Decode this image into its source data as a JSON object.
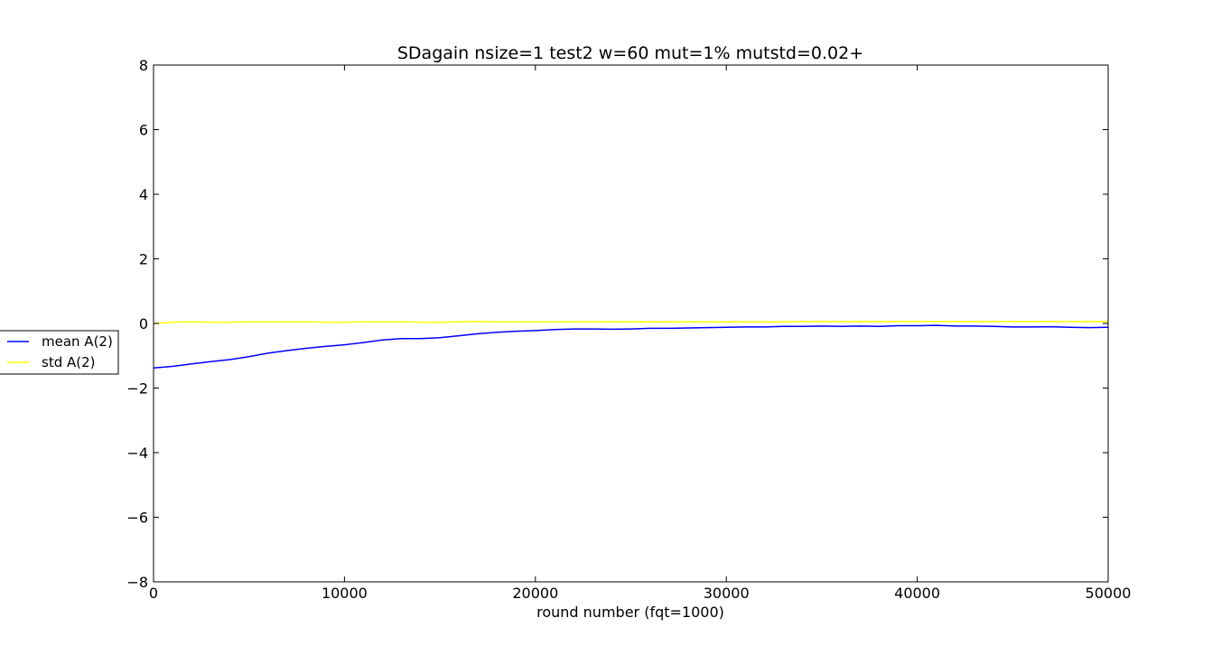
{
  "chart_data": {
    "type": "line",
    "title": "SDagain nsize=1 test2 w=60 mut=1% mutstd=0.02+",
    "xlabel": "round number (fqt=1000)",
    "ylabel": "",
    "xlim": [
      0,
      50000
    ],
    "ylim": [
      -8,
      8
    ],
    "xticks": [
      0,
      10000,
      20000,
      30000,
      40000,
      50000
    ],
    "xtick_labels": [
      "0",
      "10000",
      "20000",
      "30000",
      "40000",
      "50000"
    ],
    "yticks": [
      -8,
      -6,
      -4,
      -2,
      0,
      2,
      4,
      6,
      8
    ],
    "ytick_labels": [
      "−8",
      "−6",
      "−4",
      "−2",
      "0",
      "2",
      "4",
      "6",
      "8"
    ],
    "grid": false,
    "legend_position": "outside-left",
    "series": [
      {
        "name": "mean A(2)",
        "color": "#0000ff",
        "x": [
          0,
          1000,
          2000,
          3000,
          4000,
          5000,
          6000,
          7000,
          8000,
          9000,
          10000,
          11000,
          12000,
          13000,
          14000,
          15000,
          16000,
          17000,
          18000,
          19000,
          20000,
          21000,
          22000,
          23000,
          24000,
          25000,
          26000,
          27000,
          28000,
          29000,
          30000,
          31000,
          32000,
          33000,
          34000,
          35000,
          36000,
          37000,
          38000,
          39000,
          40000,
          41000,
          42000,
          43000,
          44000,
          45000,
          46000,
          47000,
          48000,
          49000,
          50000
        ],
        "y": [
          -1.38,
          -1.33,
          -1.25,
          -1.18,
          -1.12,
          -1.03,
          -0.92,
          -0.84,
          -0.77,
          -0.71,
          -0.66,
          -0.59,
          -0.51,
          -0.47,
          -0.47,
          -0.44,
          -0.38,
          -0.32,
          -0.27,
          -0.24,
          -0.22,
          -0.19,
          -0.17,
          -0.17,
          -0.18,
          -0.17,
          -0.15,
          -0.15,
          -0.14,
          -0.13,
          -0.12,
          -0.11,
          -0.11,
          -0.09,
          -0.09,
          -0.08,
          -0.09,
          -0.08,
          -0.09,
          -0.07,
          -0.07,
          -0.06,
          -0.08,
          -0.08,
          -0.09,
          -0.11,
          -0.11,
          -0.1,
          -0.12,
          -0.13,
          -0.12
        ]
      },
      {
        "name": "std A(2)",
        "color": "#ffff00",
        "x": [
          0,
          1000,
          2000,
          3000,
          4000,
          5000,
          6000,
          7000,
          8000,
          9000,
          10000,
          11000,
          12000,
          13000,
          14000,
          15000,
          16000,
          17000,
          18000,
          19000,
          20000,
          21000,
          22000,
          23000,
          24000,
          25000,
          26000,
          27000,
          28000,
          29000,
          30000,
          31000,
          32000,
          33000,
          34000,
          35000,
          36000,
          37000,
          38000,
          39000,
          40000,
          41000,
          42000,
          43000,
          44000,
          45000,
          46000,
          47000,
          48000,
          49000,
          50000
        ],
        "y": [
          0.0,
          0.04,
          0.05,
          0.04,
          0.04,
          0.05,
          0.05,
          0.05,
          0.05,
          0.04,
          0.04,
          0.05,
          0.05,
          0.05,
          0.04,
          0.04,
          0.05,
          0.06,
          0.05,
          0.05,
          0.05,
          0.05,
          0.05,
          0.05,
          0.05,
          0.05,
          0.05,
          0.05,
          0.05,
          0.05,
          0.05,
          0.05,
          0.05,
          0.05,
          0.06,
          0.06,
          0.06,
          0.06,
          0.06,
          0.06,
          0.06,
          0.06,
          0.06,
          0.06,
          0.06,
          0.06,
          0.06,
          0.06,
          0.06,
          0.06,
          0.06
        ]
      }
    ]
  }
}
